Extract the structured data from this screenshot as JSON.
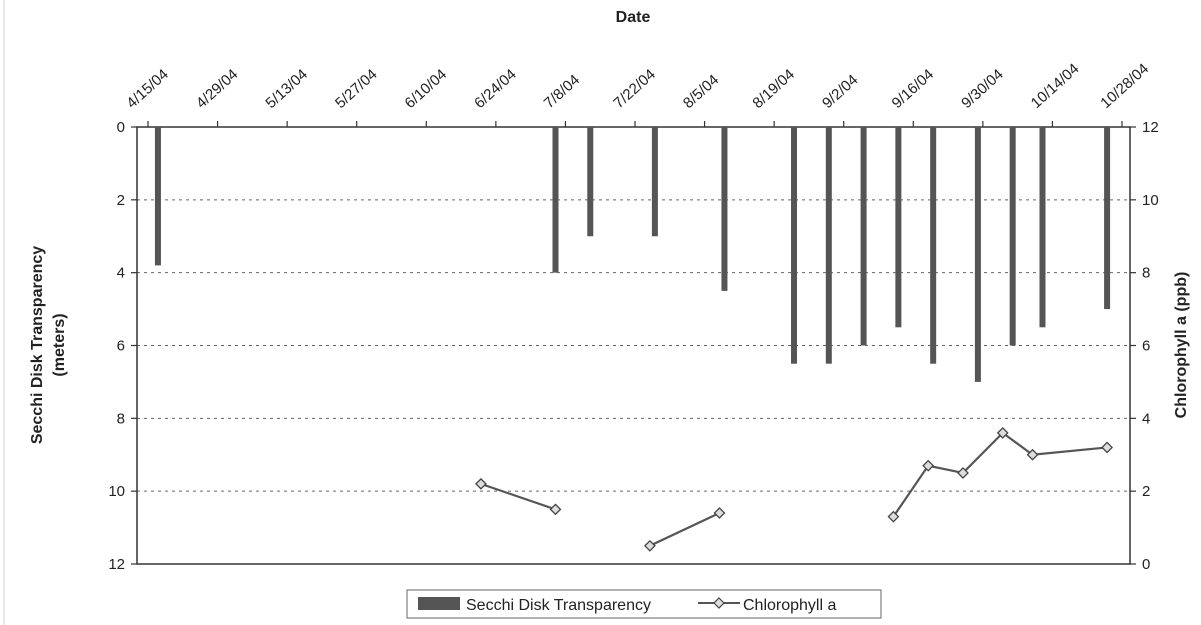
{
  "chart_data": {
    "type": "bar+line",
    "title": "",
    "x_axis": {
      "label": "Date",
      "position": "top",
      "tick_labels": [
        "4/15/04",
        "4/29/04",
        "5/13/04",
        "5/27/04",
        "6/10/04",
        "6/24/04",
        "7/8/04",
        "7/22/04",
        "8/5/04",
        "8/19/04",
        "9/2/04",
        "9/16/04",
        "9/30/04",
        "10/14/04",
        "10/28/04"
      ]
    },
    "y_left": {
      "label_line1": "Secchi Disk Transparency",
      "label_line2": "(meters)",
      "range": [
        0,
        12
      ],
      "inverted": true,
      "ticks": [
        "0",
        "2",
        "4",
        "6",
        "8",
        "10",
        "12"
      ]
    },
    "y_right": {
      "label": "Chlorophyll a (ppb)",
      "range": [
        0,
        12
      ],
      "ticks": [
        "0",
        "2",
        "4",
        "6",
        "8",
        "10",
        "12"
      ]
    },
    "grid": "horizontal dashed",
    "series": [
      {
        "name": "Secchi Disk Transparency",
        "type": "bar",
        "axis": "left",
        "color": "#555555",
        "points": [
          {
            "x": "2004-04-17",
            "y": 3.8
          },
          {
            "x": "2004-07-06",
            "y": 4.0
          },
          {
            "x": "2004-07-13",
            "y": 3.0
          },
          {
            "x": "2004-07-26",
            "y": 3.0
          },
          {
            "x": "2004-08-09",
            "y": 4.5
          },
          {
            "x": "2004-08-23",
            "y": 6.5
          },
          {
            "x": "2004-08-30",
            "y": 6.5
          },
          {
            "x": "2004-09-06",
            "y": 6.0
          },
          {
            "x": "2004-09-13",
            "y": 5.5
          },
          {
            "x": "2004-09-20",
            "y": 6.5
          },
          {
            "x": "2004-09-29",
            "y": 7.0
          },
          {
            "x": "2004-10-06",
            "y": 6.0
          },
          {
            "x": "2004-10-12",
            "y": 5.5
          },
          {
            "x": "2004-10-25",
            "y": 5.0
          }
        ]
      },
      {
        "name": "Chlorophyll a",
        "type": "line",
        "axis": "right",
        "color": "#555555",
        "marker": "diamond",
        "segments": [
          [
            {
              "x": "2004-06-21",
              "y": 2.2
            },
            {
              "x": "2004-07-06",
              "y": 1.5
            }
          ],
          [
            {
              "x": "2004-07-25",
              "y": 0.5
            },
            {
              "x": "2004-08-08",
              "y": 1.4
            }
          ],
          [
            {
              "x": "2004-09-12",
              "y": 1.3
            },
            {
              "x": "2004-09-19",
              "y": 2.7
            },
            {
              "x": "2004-09-26",
              "y": 2.5
            },
            {
              "x": "2004-10-04",
              "y": 3.6
            },
            {
              "x": "2004-10-10",
              "y": 3.0
            },
            {
              "x": "2004-10-25",
              "y": 3.2
            }
          ]
        ]
      }
    ],
    "legend": {
      "placement": "bottom",
      "items": [
        "Secchi Disk Transparency",
        "Chlorophyll a"
      ]
    }
  }
}
